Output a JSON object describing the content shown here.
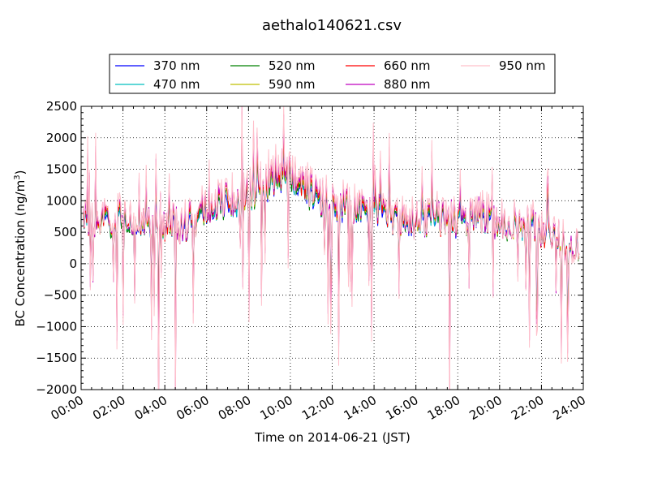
{
  "chart_data": {
    "type": "line",
    "title": "aethalo140621.csv",
    "xlabel": "Time on 2014-06-21 (JST)",
    "ylabel": "BC Concentration (ng/m",
    "ylabel_sup": "3",
    "ylabel_end": ")",
    "xlim": [
      0,
      24
    ],
    "ylim": [
      -2000,
      2500
    ],
    "x_ticks": [
      0,
      2,
      4,
      6,
      8,
      10,
      12,
      14,
      16,
      18,
      20,
      22,
      24
    ],
    "x_tick_labels": [
      "00:00",
      "02:00",
      "04:00",
      "06:00",
      "08:00",
      "10:00",
      "12:00",
      "14:00",
      "16:00",
      "18:00",
      "20:00",
      "22:00",
      "24:00"
    ],
    "y_ticks": [
      -2000,
      -1500,
      -1000,
      -500,
      0,
      500,
      1000,
      1500,
      2000,
      2500
    ],
    "y_tick_labels": [
      "−2000",
      "−1500",
      "−1000",
      "−500",
      "0",
      "500",
      "1000",
      "1500",
      "2000",
      "2500"
    ],
    "grid": true,
    "legend_position": "top-center",
    "x_data_range": [
      0.1,
      23.8
    ],
    "series_profile": {
      "hours": [
        0.1,
        1,
        2,
        3,
        4,
        5,
        6,
        7,
        8,
        9,
        10,
        11,
        12,
        13,
        14,
        15,
        16,
        17,
        18,
        19,
        20,
        21,
        22,
        23,
        23.8
      ],
      "base_values": [
        620,
        650,
        700,
        600,
        650,
        600,
        800,
        1000,
        1100,
        1300,
        1450,
        1100,
        900,
        850,
        800,
        700,
        650,
        700,
        650,
        750,
        650,
        600,
        550,
        350,
        200
      ]
    },
    "series": [
      {
        "name": "370 nm",
        "color": "#0000ff",
        "scale": 0.95
      },
      {
        "name": "470 nm",
        "color": "#00bfbf",
        "scale": 0.98
      },
      {
        "name": "520 nm",
        "color": "#008000",
        "scale": 1.0
      },
      {
        "name": "590 nm",
        "color": "#bfbf00",
        "scale": 1.02
      },
      {
        "name": "660 nm",
        "color": "#ff0000",
        "scale": 1.04
      },
      {
        "name": "880 nm",
        "color": "#bf00bf",
        "scale": 1.08
      },
      {
        "name": "950 nm",
        "color": "#ffc0cb",
        "scale": 1.12
      }
    ],
    "notable_points": [
      {
        "x": 1.7,
        "y": -880
      },
      {
        "x": 3.7,
        "y": -1750
      },
      {
        "x": 4.5,
        "y": -1680
      },
      {
        "x": 7.7,
        "y": 2180
      },
      {
        "x": 9.7,
        "y": 2130
      },
      {
        "x": 12.3,
        "y": -1000
      },
      {
        "x": 17.6,
        "y": -1750
      },
      {
        "x": 22.3,
        "y": 1200
      }
    ]
  }
}
